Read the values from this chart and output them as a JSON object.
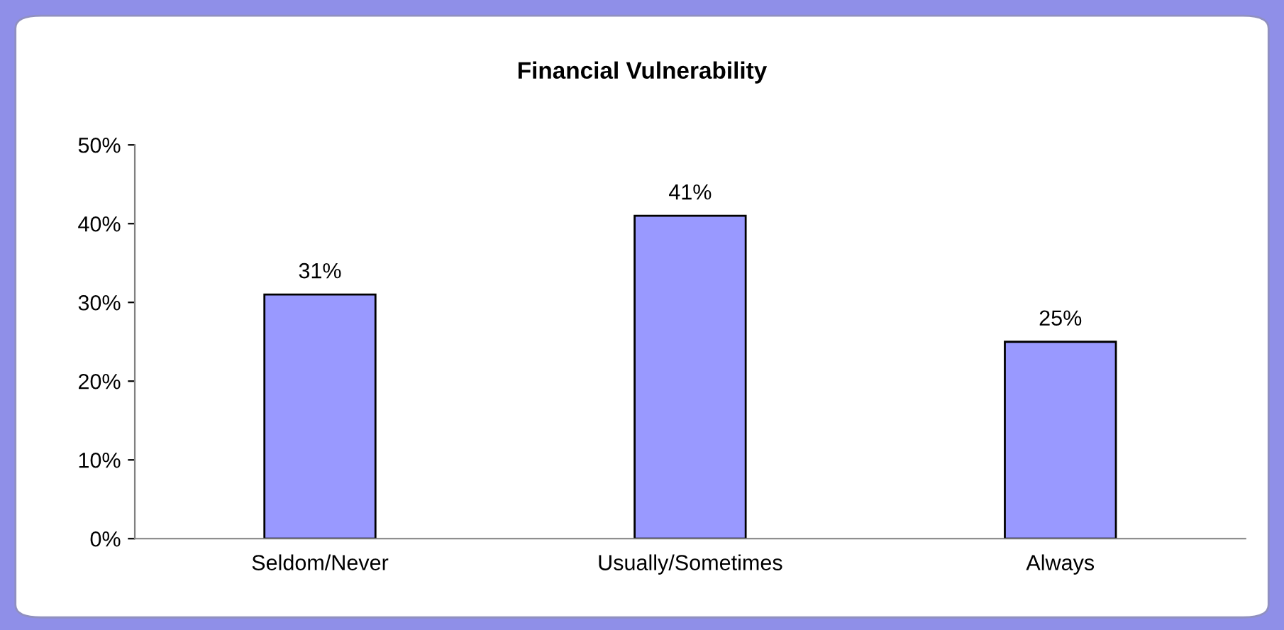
{
  "chart_data": {
    "type": "bar",
    "title": "Financial Vulnerability",
    "categories": [
      "Seldom/Never",
      "Usually/Sometimes",
      "Always"
    ],
    "values": [
      31,
      41,
      25
    ],
    "value_labels": [
      "31%",
      "41%",
      "25%"
    ],
    "color": "#9999ff",
    "ylim": [
      0,
      50
    ],
    "yticks": [
      {
        "value": 0,
        "label": "0%"
      },
      {
        "value": 10,
        "label": "10%"
      },
      {
        "value": 20,
        "label": "20%"
      },
      {
        "value": 30,
        "label": "30%"
      },
      {
        "value": 40,
        "label": "40%"
      },
      {
        "value": 50,
        "label": "50%"
      }
    ],
    "grid": false,
    "legend": false
  }
}
